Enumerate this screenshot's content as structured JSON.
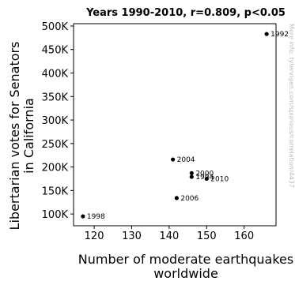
{
  "chart_data": {
    "type": "scatter",
    "title": "Years 1990-2010, r=0.809, p<0.05",
    "xlabel": [
      "Number of moderate earthquakes",
      "worldwide"
    ],
    "ylabel": [
      "Libertarian votes for Senators",
      "in California"
    ],
    "xlim": [
      114.5,
      168.5
    ],
    "ylim": [
      75000,
      505000
    ],
    "xticks": [
      120,
      130,
      140,
      150,
      160
    ],
    "xtick_labels": [
      "120",
      "130",
      "140",
      "150",
      "160"
    ],
    "yticks": [
      100000,
      150000,
      200000,
      250000,
      300000,
      350000,
      400000,
      450000,
      500000
    ],
    "ytick_labels": [
      "100K",
      "150K",
      "200K",
      "250K",
      "300K",
      "350K",
      "400K",
      "450K",
      "500K"
    ],
    "grid": false,
    "points": [
      {
        "x": 166,
        "y": 483000,
        "label": "1992"
      },
      {
        "x": 141,
        "y": 216000,
        "label": "2004"
      },
      {
        "x": 146,
        "y": 187000,
        "label": "2000"
      },
      {
        "x": 146,
        "y": 179000,
        "label": "1994"
      },
      {
        "x": 150,
        "y": 175000,
        "label": "2010"
      },
      {
        "x": 142,
        "y": 134000,
        "label": "2006"
      },
      {
        "x": 117,
        "y": 95000,
        "label": "1998"
      }
    ],
    "watermark": "More info: tylervigen.com/spurious/correlation/4437"
  }
}
